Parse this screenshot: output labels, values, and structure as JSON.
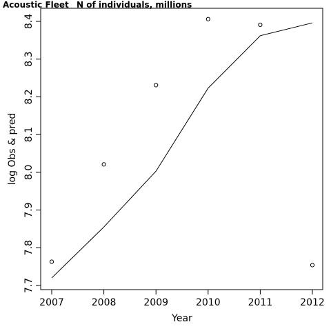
{
  "chart_data": {
    "type": "scatter",
    "title": "Acoustic Fleet",
    "subtitle": "N of individuals, millions",
    "xlabel": "Year",
    "ylabel": "log Obs & pred",
    "xlim": [
      2007,
      2012
    ],
    "ylim": [
      7.7,
      8.4
    ],
    "x_ticks": [
      "2007",
      "2008",
      "2009",
      "2010",
      "2011",
      "2012"
    ],
    "y_ticks": [
      "7.7",
      "7.8",
      "7.9",
      "8.0",
      "8.1",
      "8.2",
      "8.3",
      "8.4"
    ],
    "grid": false,
    "series": [
      {
        "mark": "points",
        "x": [
          2007,
          2008,
          2009,
          2010,
          2011,
          2012
        ],
        "y": [
          7.763,
          8.021,
          8.231,
          8.406,
          8.391,
          7.754
        ]
      },
      {
        "mark": "line",
        "x": [
          2007,
          2008,
          2009,
          2010,
          2011,
          2012
        ],
        "y": [
          7.72,
          7.855,
          8.003,
          8.223,
          8.362,
          8.396
        ]
      }
    ]
  }
}
